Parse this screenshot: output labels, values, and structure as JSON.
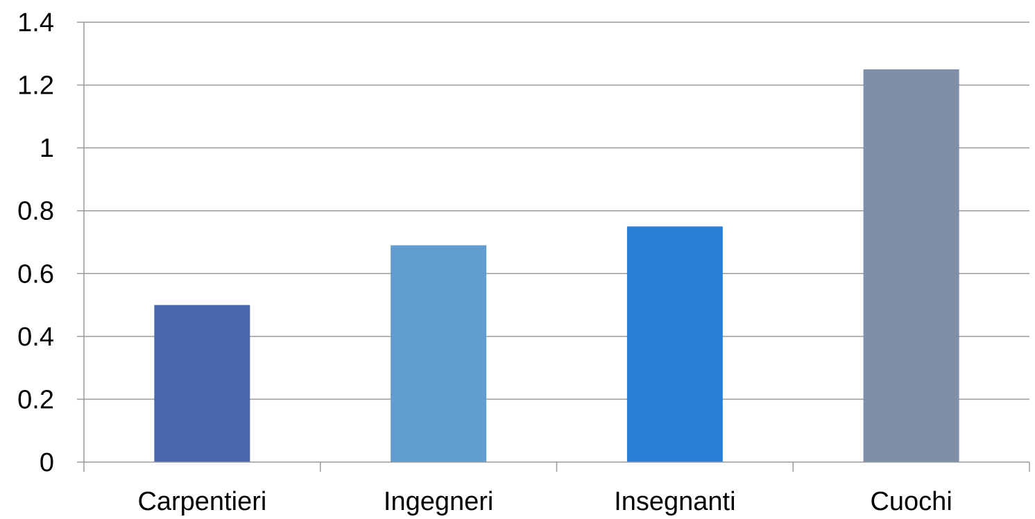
{
  "chart_data": {
    "type": "bar",
    "categories": [
      "Carpentieri",
      "Ingegneri",
      "Insegnanti",
      "Cuochi"
    ],
    "values": [
      0.5,
      0.69,
      0.75,
      1.25
    ],
    "colors": [
      "#4a67ad",
      "#629dd1",
      "#2c7fd6",
      "#7f8fa9"
    ],
    "y_ticks": [
      "0",
      "0.2",
      "0.4",
      "0.6",
      "0.8",
      "1",
      "1.2",
      "1.4"
    ],
    "ylim": [
      0,
      1.4
    ],
    "grid": true,
    "gridline_color": "#9a9a9a",
    "legend": "none"
  }
}
